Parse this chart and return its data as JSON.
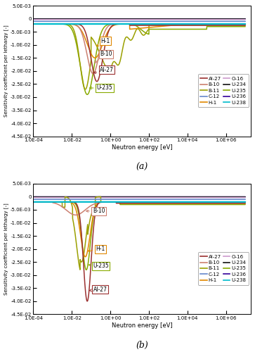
{
  "ylim": [
    -0.045,
    0.005
  ],
  "yticks": [
    0.005,
    0,
    -0.005,
    -0.01,
    -0.015,
    -0.02,
    -0.025,
    -0.03,
    -0.035,
    -0.04,
    -0.045
  ],
  "ytick_labels": [
    "5.0E-03",
    "0",
    "-5.0E-03",
    "-1.0E-02",
    "-1.5E-02",
    "-2.0E-02",
    "-2.5E-02",
    "-3.0E-02",
    "-3.5E-02",
    "-4.0E-02",
    "-4.5E-02"
  ],
  "xtick_vals": [
    0.0001,
    0.01,
    1.0,
    100.0,
    10000.0,
    1000000.0
  ],
  "xtick_labels": [
    "1.0E-04",
    "1.0E-02",
    "1.0E+00",
    "1.0E+02",
    "1.0E+04",
    "1.0E+06"
  ],
  "xlabel": "Neutron energy [eV]",
  "ylabel": "Sensitivity coefficient per lethargy [-]",
  "panel_labels": [
    "(a)",
    "(b)"
  ],
  "colors": {
    "Al-27": "#9B3030",
    "B-10": "#CC8070",
    "B-11": "#9aA000",
    "C-12": "#6688CC",
    "H-1": "#E08800",
    "O-16": "#CC99CC",
    "U-234": "#111111",
    "U-235": "#88AA00",
    "U-236": "#330099",
    "U-238": "#00BBCC"
  },
  "legend_order": [
    "Al-27",
    "B-10",
    "B-11",
    "C-12",
    "H-1",
    "O-16",
    "U-234",
    "U-235",
    "U-236",
    "U-238"
  ]
}
